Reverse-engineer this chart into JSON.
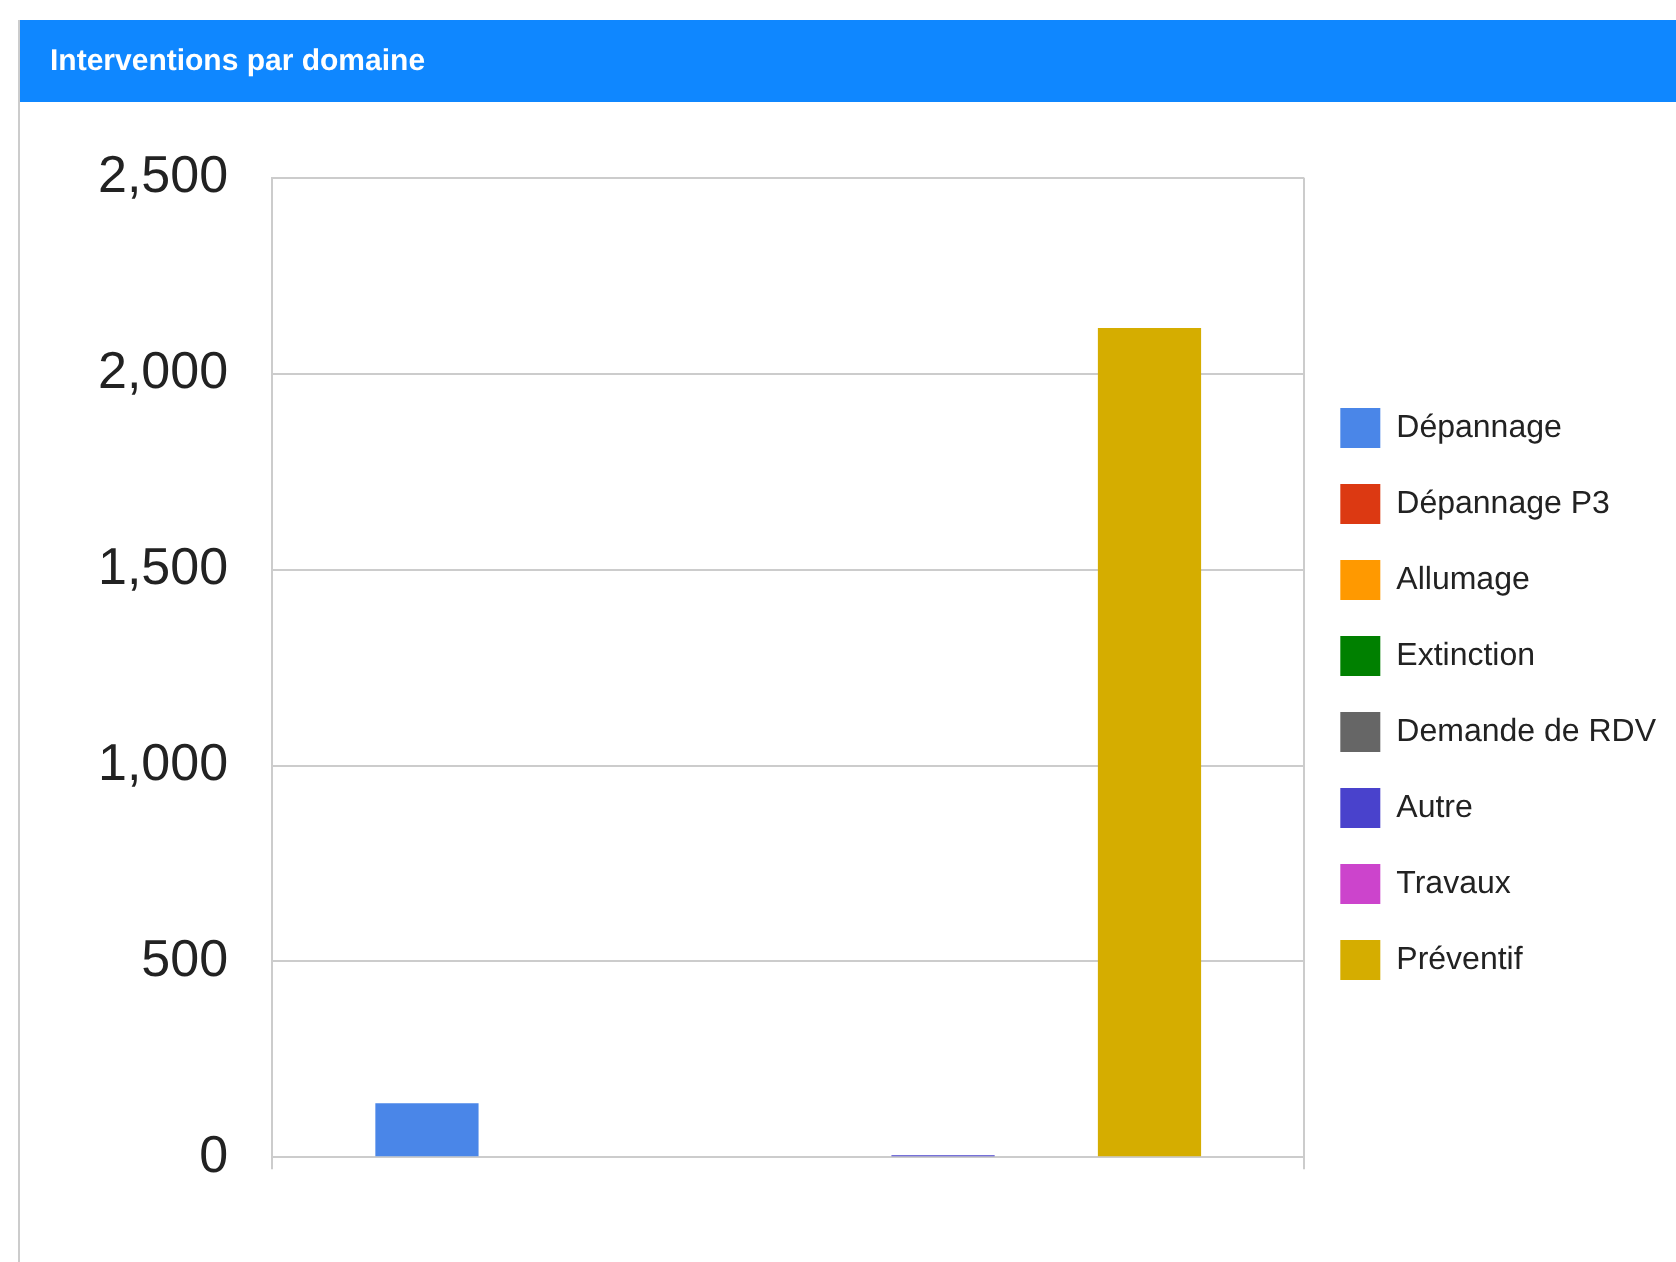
{
  "chart_data": {
    "type": "bar",
    "title": "Interventions par domaine",
    "categories": [
      null
    ],
    "series": [
      {
        "name": "Dépannage",
        "color": "#4a86e8",
        "values": [
          138
        ]
      },
      {
        "name": "Dépannage P3",
        "color": "#dc3912",
        "values": [
          0
        ]
      },
      {
        "name": "Allumage",
        "color": "#ff9900",
        "values": [
          0
        ]
      },
      {
        "name": "Extinction",
        "color": "#008000",
        "values": [
          0
        ]
      },
      {
        "name": "Demande de RDV",
        "color": "#666666",
        "values": [
          0
        ]
      },
      {
        "name": "Autre",
        "color": "#4942cc",
        "values": [
          5
        ]
      },
      {
        "name": "Travaux",
        "color": "#cc44cc",
        "values": [
          0
        ]
      },
      {
        "name": "Préventif",
        "color": "#d5ad00",
        "values": [
          2117
        ]
      }
    ],
    "ylim": [
      0,
      2500
    ],
    "yticks": [
      0,
      500,
      {
        "value": 1000,
        "label": "1,000"
      },
      {
        "value": 1500,
        "label": "1,500"
      },
      {
        "value": 2000,
        "label": "2,000"
      },
      {
        "value": 2500,
        "label": "2,500"
      }
    ],
    "grid": "y",
    "legend": "right"
  }
}
